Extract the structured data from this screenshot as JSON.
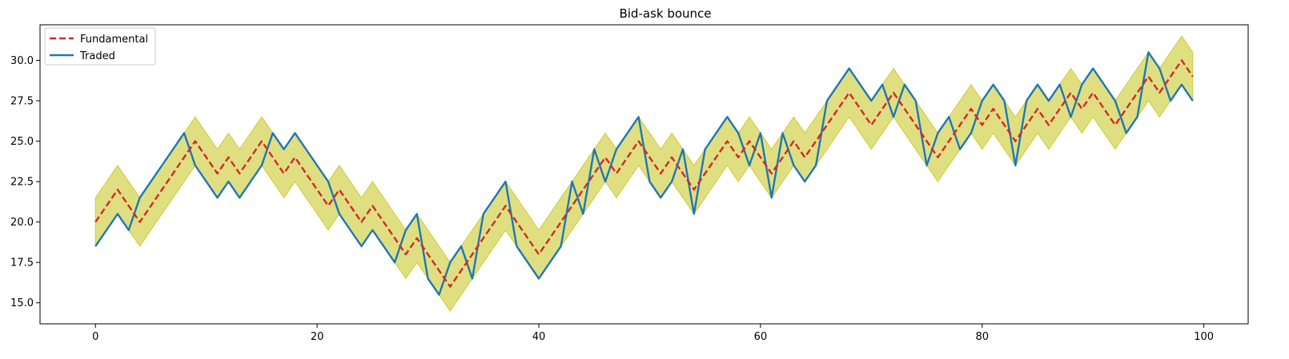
{
  "chart_data": {
    "type": "line",
    "title": "Bid-ask bounce",
    "xlabel": "",
    "ylabel": "",
    "xlim": [
      -5,
      104
    ],
    "ylim": [
      13.7,
      32.2
    ],
    "xticks": [
      0,
      20,
      40,
      60,
      80,
      100
    ],
    "xtick_labels": [
      "0",
      "20",
      "40",
      "60",
      "80",
      "100"
    ],
    "yticks": [
      15.0,
      17.5,
      20.0,
      22.5,
      25.0,
      27.5,
      30.0
    ],
    "ytick_labels": [
      "15.0",
      "17.5",
      "20.0",
      "22.5",
      "25.0",
      "27.5",
      "30.0"
    ],
    "grid": false,
    "legend_position": "top-left",
    "band_halfwidth": 1.5,
    "band_color": "#cccc33",
    "x": [
      0,
      1,
      2,
      3,
      4,
      5,
      6,
      7,
      8,
      9,
      10,
      11,
      12,
      13,
      14,
      15,
      16,
      17,
      18,
      19,
      20,
      21,
      22,
      23,
      24,
      25,
      26,
      27,
      28,
      29,
      30,
      31,
      32,
      33,
      34,
      35,
      36,
      37,
      38,
      39,
      40,
      41,
      42,
      43,
      44,
      45,
      46,
      47,
      48,
      49,
      50,
      51,
      52,
      53,
      54,
      55,
      56,
      57,
      58,
      59,
      60,
      61,
      62,
      63,
      64,
      65,
      66,
      67,
      68,
      69,
      70,
      71,
      72,
      73,
      74,
      75,
      76,
      77,
      78,
      79,
      80,
      81,
      82,
      83,
      84,
      85,
      86,
      87,
      88,
      89,
      90,
      91,
      92,
      93,
      94,
      95,
      96,
      97,
      98,
      99
    ],
    "series": [
      {
        "name": "Fundamental",
        "color": "#d62728",
        "style": "dashed",
        "values": [
          20,
          21,
          22,
          21,
          20,
          21,
          22,
          23,
          24,
          25,
          24,
          23,
          24,
          23,
          24,
          25,
          24,
          23,
          24,
          23,
          22,
          21,
          22,
          21,
          20,
          21,
          20,
          19,
          18,
          19,
          18,
          17,
          16,
          17,
          18,
          19,
          20,
          21,
          20,
          19,
          18,
          19,
          20,
          21,
          22,
          23,
          24,
          23,
          24,
          25,
          24,
          23,
          24,
          23,
          22,
          23,
          24,
          25,
          24,
          25,
          24,
          23,
          24,
          25,
          24,
          25,
          26,
          27,
          28,
          27,
          26,
          27,
          28,
          27,
          26,
          25,
          24,
          25,
          26,
          27,
          26,
          27,
          26,
          25,
          26,
          27,
          26,
          27,
          28,
          27,
          28,
          27,
          26,
          27,
          28,
          29,
          28,
          29,
          30,
          29
        ]
      },
      {
        "name": "Traded",
        "color": "#1f77b4",
        "style": "solid",
        "values": [
          18.5,
          19.5,
          20.5,
          19.5,
          21.5,
          22.5,
          23.5,
          24.5,
          25.5,
          23.5,
          22.5,
          21.5,
          22.5,
          21.5,
          22.5,
          23.5,
          25.5,
          24.5,
          25.5,
          24.5,
          23.5,
          22.5,
          20.5,
          19.5,
          18.5,
          19.5,
          18.5,
          17.5,
          19.5,
          20.5,
          16.5,
          15.5,
          17.5,
          18.5,
          16.5,
          20.5,
          21.5,
          22.5,
          18.5,
          17.5,
          16.5,
          17.5,
          18.5,
          22.5,
          20.5,
          24.5,
          22.5,
          24.5,
          25.5,
          26.5,
          22.5,
          21.5,
          22.5,
          24.5,
          20.5,
          24.5,
          25.5,
          26.5,
          25.5,
          23.5,
          25.5,
          21.5,
          25.5,
          23.5,
          22.5,
          23.5,
          27.5,
          28.5,
          29.5,
          28.5,
          27.5,
          28.5,
          26.5,
          28.5,
          27.5,
          23.5,
          25.5,
          26.5,
          24.5,
          25.5,
          27.5,
          28.5,
          27.5,
          23.5,
          27.5,
          28.5,
          27.5,
          28.5,
          26.5,
          28.5,
          29.5,
          28.5,
          27.5,
          25.5,
          26.5,
          30.5,
          29.5,
          27.5,
          28.5,
          27.5
        ]
      }
    ]
  }
}
